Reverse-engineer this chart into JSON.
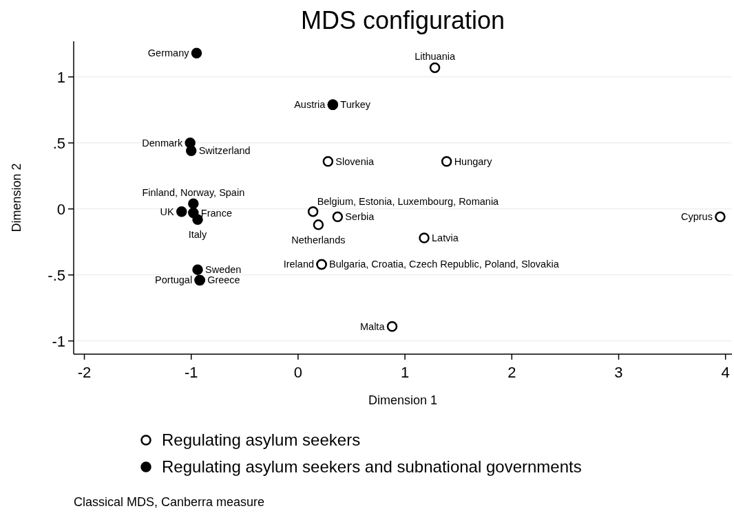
{
  "chart_data": {
    "type": "scatter",
    "title": "MDS configuration",
    "xlabel": "Dimension 1",
    "ylabel": "Dimension 2",
    "xlim": [
      -2.1,
      4.06
    ],
    "ylim": [
      -1.1,
      1.27
    ],
    "xticks": [
      -2,
      -1,
      0,
      1,
      2,
      3,
      4
    ],
    "yticks": [
      {
        "value": -1,
        "label": "-1"
      },
      {
        "value": -0.5,
        "label": "-.5"
      },
      0,
      {
        "value": 0.5,
        "label": ".5"
      },
      1
    ],
    "grid": "y",
    "legend": "bottom",
    "marker": "circle",
    "annotations": [
      "Classical MDS, Canberra measure"
    ],
    "series": [
      {
        "name": "Regulating asylum seekers",
        "color": "#000000",
        "x": [
          1.28,
          0.28,
          1.39,
          0.14,
          0.19,
          0.37,
          1.18,
          3.95,
          0.22,
          0.22,
          0.88
        ],
        "values": [
          1.07,
          0.36,
          0.36,
          -0.02,
          -0.12,
          -0.06,
          -0.22,
          -0.06,
          -0.42,
          -0.42,
          -0.89
        ],
        "value_labels": [
          "Lithuania",
          "Slovenia",
          "Hungary",
          "Belgium, Estonia, Luxembourg, Romania",
          "Netherlands",
          "Serbia",
          "Latvia",
          "Cyprus",
          "Ireland",
          "Bulgaria, Croatia, Czech Republic, Poland, Slovakia",
          "Malta"
        ]
      },
      {
        "name": "Regulating asylum seekers and subnational governments",
        "color": "#000000",
        "x": [
          -0.95,
          0.325,
          0.325,
          -1.01,
          -1.0,
          -0.98,
          -1.09,
          -0.98,
          -0.94,
          -0.94,
          -0.92,
          -0.92
        ],
        "values": [
          1.18,
          0.79,
          0.79,
          0.5,
          0.44,
          0.04,
          -0.02,
          -0.03,
          -0.08,
          -0.46,
          -0.54,
          -0.54
        ],
        "value_labels": [
          "Germany",
          "Austria",
          "Turkey",
          "Denmark",
          "Switzerland",
          "Finland, Norway, Spain",
          "UK",
          "France",
          "Italy",
          "Sweden",
          "Portugal",
          "Greece"
        ]
      }
    ]
  }
}
